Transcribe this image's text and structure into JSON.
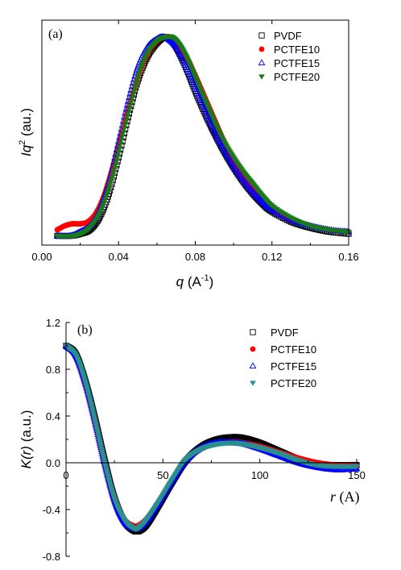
{
  "chart_data": [
    {
      "type": "scatter",
      "panel_label": "(a)",
      "xlabel": {
        "italic": "q",
        "rest": " (A",
        "sup": "-1",
        "close": ")"
      },
      "ylabel": {
        "main": "Iq",
        "sup": "2",
        "rest": " (au.)"
      },
      "xlim": [
        0.0,
        0.16
      ],
      "ylim": [
        0,
        1.05
      ],
      "xticks": [
        0.0,
        0.04,
        0.08,
        0.12,
        0.16
      ],
      "xtick_labels": [
        "0.00",
        "0.04",
        "0.08",
        "0.12",
        "0.16"
      ],
      "legend_position": "top-right",
      "series": [
        {
          "name": "PVDF",
          "marker": "open-square",
          "color": "#000000",
          "x": [
            0.008,
            0.015,
            0.02,
            0.025,
            0.03,
            0.035,
            0.04,
            0.045,
            0.05,
            0.055,
            0.06,
            0.064,
            0.067,
            0.07,
            0.075,
            0.08,
            0.085,
            0.09,
            0.095,
            0.1,
            0.105,
            0.11,
            0.115,
            0.12,
            0.13,
            0.14,
            0.15,
            0.16
          ],
          "y": [
            0.01,
            0.01,
            0.02,
            0.04,
            0.1,
            0.22,
            0.4,
            0.6,
            0.78,
            0.9,
            0.97,
            1.0,
            0.99,
            0.95,
            0.85,
            0.73,
            0.62,
            0.52,
            0.43,
            0.35,
            0.28,
            0.22,
            0.17,
            0.13,
            0.08,
            0.05,
            0.03,
            0.02
          ]
        },
        {
          "name": "PCTFE10",
          "marker": "filled-circle",
          "color": "#ff0000",
          "x": [
            0.008,
            0.012,
            0.016,
            0.02,
            0.024,
            0.028,
            0.032,
            0.036,
            0.04,
            0.045,
            0.05,
            0.055,
            0.06,
            0.064,
            0.067,
            0.07,
            0.075,
            0.08,
            0.085,
            0.09,
            0.095,
            0.1,
            0.105,
            0.11,
            0.115,
            0.12,
            0.13,
            0.14,
            0.15,
            0.16
          ],
          "y": [
            0.04,
            0.06,
            0.07,
            0.07,
            0.08,
            0.12,
            0.2,
            0.32,
            0.46,
            0.64,
            0.8,
            0.92,
            0.98,
            1.0,
            1.0,
            0.98,
            0.91,
            0.81,
            0.7,
            0.59,
            0.48,
            0.38,
            0.3,
            0.24,
            0.19,
            0.15,
            0.09,
            0.06,
            0.04,
            0.03
          ]
        },
        {
          "name": "PCTFE15",
          "marker": "open-triangle",
          "color": "#0000ff",
          "x": [
            0.008,
            0.015,
            0.02,
            0.025,
            0.03,
            0.035,
            0.04,
            0.045,
            0.05,
            0.055,
            0.06,
            0.063,
            0.066,
            0.07,
            0.075,
            0.08,
            0.085,
            0.09,
            0.095,
            0.1,
            0.105,
            0.11,
            0.115,
            0.12,
            0.13,
            0.14,
            0.15,
            0.16
          ],
          "y": [
            0.01,
            0.01,
            0.03,
            0.06,
            0.14,
            0.28,
            0.48,
            0.68,
            0.85,
            0.95,
            0.99,
            1.0,
            0.99,
            0.95,
            0.86,
            0.75,
            0.64,
            0.53,
            0.44,
            0.36,
            0.29,
            0.23,
            0.18,
            0.14,
            0.09,
            0.06,
            0.04,
            0.03
          ]
        },
        {
          "name": "PCTFE20",
          "marker": "filled-triangle-down",
          "color": "#1a7a1a",
          "x": [
            0.008,
            0.015,
            0.02,
            0.025,
            0.03,
            0.035,
            0.04,
            0.045,
            0.05,
            0.055,
            0.06,
            0.064,
            0.068,
            0.072,
            0.076,
            0.08,
            0.085,
            0.09,
            0.095,
            0.1,
            0.105,
            0.11,
            0.115,
            0.12,
            0.13,
            0.14,
            0.15,
            0.16
          ],
          "y": [
            0.01,
            0.01,
            0.02,
            0.05,
            0.12,
            0.25,
            0.43,
            0.62,
            0.8,
            0.92,
            0.98,
            1.0,
            1.0,
            0.96,
            0.89,
            0.8,
            0.69,
            0.58,
            0.48,
            0.4,
            0.33,
            0.27,
            0.21,
            0.16,
            0.1,
            0.06,
            0.04,
            0.03
          ]
        }
      ]
    },
    {
      "type": "line",
      "panel_label": "(b)",
      "xlabel": {
        "italic": "r",
        "rest": " (A)"
      },
      "ylabel": {
        "main": "K(r)",
        "rest": " (a.u.)"
      },
      "xlim": [
        0,
        150
      ],
      "ylim": [
        -0.8,
        1.2
      ],
      "xticks": [
        0,
        50,
        100,
        150
      ],
      "xtick_labels": [
        "0",
        "50",
        "100",
        "150"
      ],
      "yticks": [
        -0.8,
        -0.4,
        0.0,
        0.4,
        0.8,
        1.2
      ],
      "ytick_labels": [
        "-0.8",
        "-0.4",
        "0.0",
        "0.4",
        "0.8",
        "1.2"
      ],
      "legend_position": "top-right",
      "series": [
        {
          "name": "PVDF",
          "marker": "open-square",
          "color": "#000000",
          "x": [
            0,
            5,
            10,
            15,
            20,
            25,
            30,
            35,
            38,
            42,
            48,
            55,
            62,
            70,
            78,
            86,
            92,
            100,
            110,
            120,
            130,
            140,
            150
          ],
          "y": [
            1.0,
            0.93,
            0.7,
            0.38,
            0.02,
            -0.3,
            -0.5,
            -0.58,
            -0.58,
            -0.52,
            -0.36,
            -0.16,
            0.02,
            0.14,
            0.2,
            0.22,
            0.21,
            0.17,
            0.1,
            0.03,
            -0.01,
            -0.02,
            -0.02
          ]
        },
        {
          "name": "PCTFE10",
          "marker": "filled-circle",
          "color": "#ff0000",
          "x": [
            0,
            5,
            10,
            15,
            20,
            25,
            30,
            35,
            38,
            42,
            48,
            55,
            62,
            70,
            78,
            86,
            92,
            100,
            110,
            120,
            130,
            140,
            150
          ],
          "y": [
            1.0,
            0.92,
            0.68,
            0.36,
            0.0,
            -0.3,
            -0.48,
            -0.54,
            -0.53,
            -0.47,
            -0.33,
            -0.14,
            0.02,
            0.12,
            0.17,
            0.18,
            0.17,
            0.14,
            0.09,
            0.04,
            0.0,
            -0.02,
            -0.03
          ]
        },
        {
          "name": "PCTFE15",
          "marker": "open-triangle",
          "color": "#0000ff",
          "x": [
            0,
            5,
            10,
            15,
            20,
            25,
            30,
            35,
            38,
            42,
            48,
            55,
            62,
            70,
            78,
            86,
            92,
            100,
            110,
            120,
            130,
            140,
            150
          ],
          "y": [
            1.0,
            0.92,
            0.68,
            0.35,
            -0.01,
            -0.32,
            -0.5,
            -0.56,
            -0.55,
            -0.48,
            -0.33,
            -0.14,
            0.03,
            0.13,
            0.17,
            0.17,
            0.16,
            0.12,
            0.06,
            0.0,
            -0.04,
            -0.06,
            -0.05
          ]
        },
        {
          "name": "PCTFE20",
          "marker": "filled-triangle-down",
          "color": "#2a8f8f",
          "x": [
            0,
            5,
            10,
            15,
            20,
            25,
            30,
            35,
            38,
            42,
            48,
            55,
            62,
            70,
            78,
            86,
            92,
            100,
            110,
            120,
            130,
            140,
            150
          ],
          "y": [
            1.0,
            0.92,
            0.69,
            0.36,
            0.0,
            -0.31,
            -0.49,
            -0.56,
            -0.55,
            -0.48,
            -0.33,
            -0.14,
            0.03,
            0.12,
            0.16,
            0.17,
            0.16,
            0.13,
            0.08,
            0.02,
            -0.02,
            -0.03,
            -0.03
          ]
        }
      ]
    }
  ]
}
